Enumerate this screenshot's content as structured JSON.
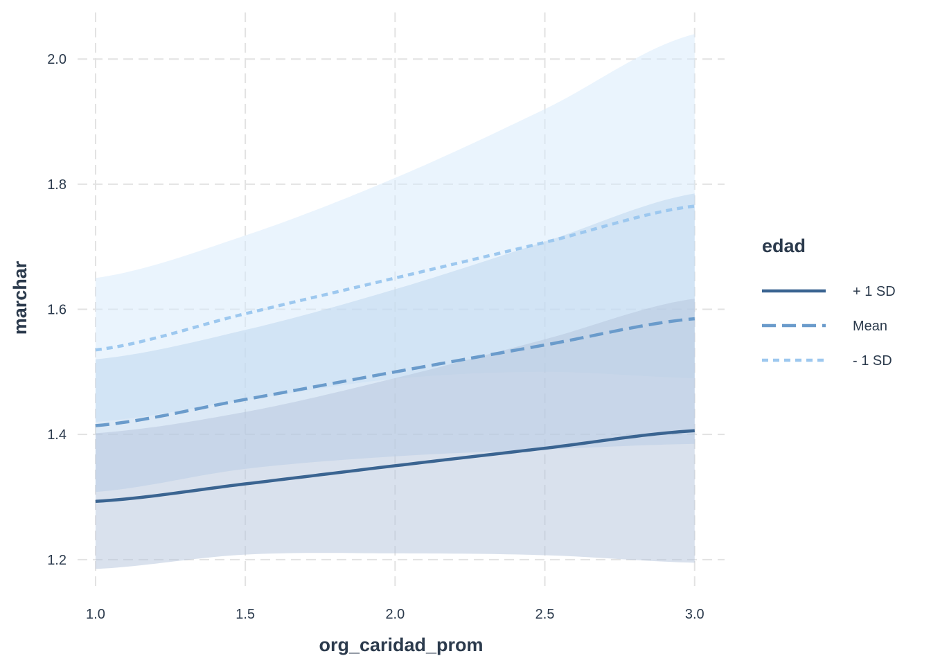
{
  "chart_data": {
    "type": "line",
    "xlabel": "org_caridad_prom",
    "ylabel": "marchar",
    "xlim": [
      0.94,
      3.1
    ],
    "ylim": [
      1.15,
      2.07
    ],
    "x_ticks": [
      1.0,
      1.5,
      2.0,
      2.5,
      3.0
    ],
    "x_tick_labels": [
      "1.0",
      "1.5",
      "2.0",
      "2.5",
      "3.0"
    ],
    "y_ticks": [
      1.2,
      1.4,
      1.6,
      1.8,
      2.0
    ],
    "y_tick_labels": [
      "1.2",
      "1.4",
      "1.6",
      "1.8",
      "2.0"
    ],
    "grid": true,
    "grid_style": "dashed",
    "legend": {
      "title": "edad",
      "placement": "right"
    },
    "x": [
      1.0,
      1.5,
      2.0,
      2.5,
      3.0
    ],
    "series": [
      {
        "name": "+ 1 SD",
        "color": "#3a6491",
        "dash": "solid",
        "values": [
          1.293,
          1.321,
          1.35,
          1.378,
          1.406
        ],
        "lower": [
          1.185,
          1.208,
          1.21,
          1.207,
          1.195
        ],
        "upper": [
          1.402,
          1.436,
          1.49,
          1.552,
          1.617
        ],
        "band_color": "#b3c4dc"
      },
      {
        "name": "Mean",
        "color": "#6a9bcb",
        "dash": "dashed",
        "values": [
          1.414,
          1.456,
          1.5,
          1.543,
          1.585
        ],
        "lower": [
          1.308,
          1.345,
          1.365,
          1.376,
          1.385
        ],
        "upper": [
          1.52,
          1.567,
          1.632,
          1.708,
          1.785
        ],
        "band_color": "#bad4ee"
      },
      {
        "name": "- 1 SD",
        "color": "#9dc8ef",
        "dash": "dotted",
        "values": [
          1.535,
          1.593,
          1.65,
          1.707,
          1.765
        ],
        "lower": [
          1.42,
          1.455,
          1.489,
          1.5,
          1.49
        ],
        "upper": [
          1.65,
          1.718,
          1.81,
          1.92,
          2.04
        ],
        "band_color": "#d6eafb"
      }
    ]
  }
}
